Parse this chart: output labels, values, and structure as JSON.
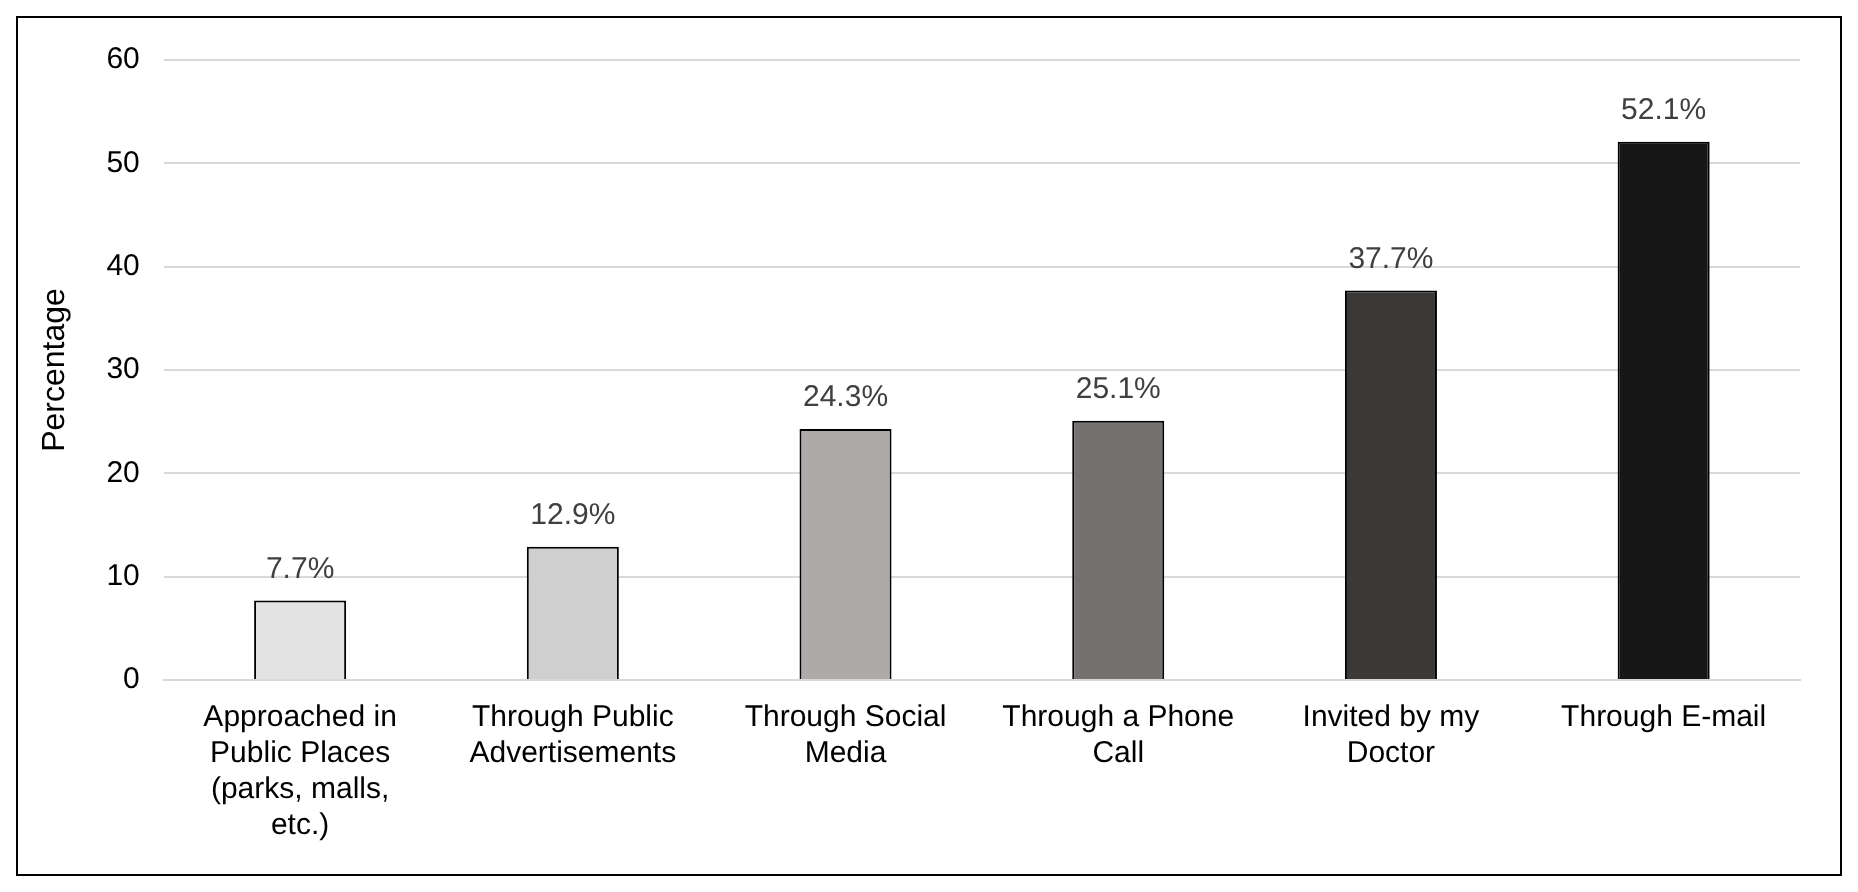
{
  "chart_data": {
    "type": "bar",
    "ylabel": "Percentage",
    "categories": [
      "Approached in Public Places (parks, malls, etc.)",
      "Through Public Advertisements",
      "Through Social Media",
      "Through a Phone Call",
      "Invited by my Doctor",
      "Through E-mail"
    ],
    "values": [
      7.7,
      12.9,
      24.3,
      25.1,
      37.7,
      52.1
    ],
    "colors": [
      "#e3e3e3",
      "#cfcfcf",
      "#aeaaaa",
      "#767171",
      "#3b3838",
      "#171717"
    ],
    "value_labels": [
      "7.7%",
      "12.9%",
      "24.3%",
      "25.1%",
      "37.7%",
      "52.1%"
    ],
    "ylim": [
      0,
      60
    ],
    "yticks": [
      0,
      10,
      20,
      30,
      40,
      50,
      60
    ],
    "grid": "y",
    "legend": false
  }
}
